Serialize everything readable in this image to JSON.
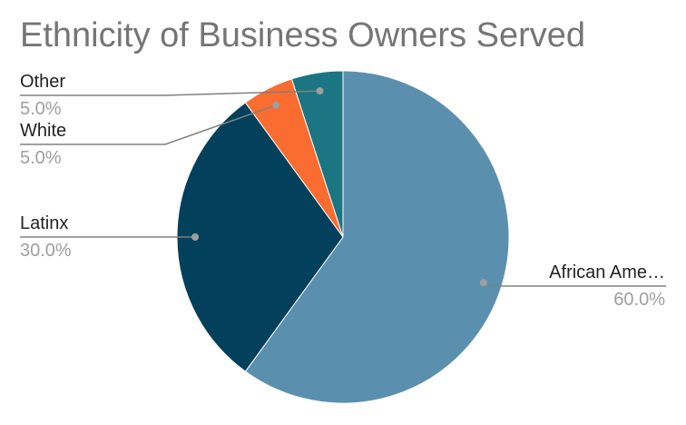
{
  "chart_data": {
    "type": "pie",
    "title": "Ethnicity of Business Owners Served",
    "slices": [
      {
        "label": "African Ame…",
        "value": 60.0,
        "value_label": "60.0%",
        "color": "#5b8fae"
      },
      {
        "label": "Latinx",
        "value": 30.0,
        "value_label": "30.0%",
        "color": "#03405c"
      },
      {
        "label": "White",
        "value": 5.0,
        "value_label": "5.0%",
        "color": "#fa6c2f"
      },
      {
        "label": "Other",
        "value": 5.0,
        "value_label": "5.0%",
        "color": "#1c7583"
      }
    ],
    "legend": "none",
    "label_style": "outside labels with leader lines"
  }
}
